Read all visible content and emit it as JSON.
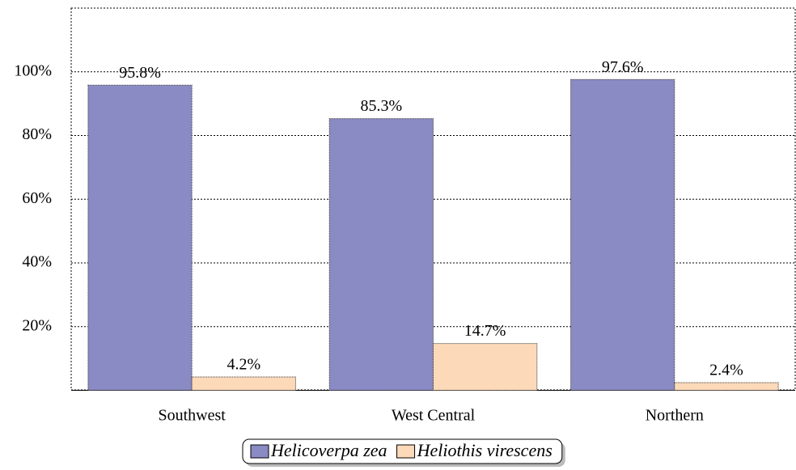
{
  "chart_data": {
    "type": "bar",
    "categories": [
      "Southwest",
      "West Central",
      "Northern"
    ],
    "series": [
      {
        "name": "Helicoverpa zea",
        "color": "#8a8ac4",
        "values": [
          95.8,
          85.3,
          97.6
        ],
        "value_labels": [
          "95.8%",
          "85.3%",
          "97.6%"
        ]
      },
      {
        "name": "Heliothis virescens",
        "color": "#fcd9b8",
        "values": [
          4.2,
          14.7,
          2.4
        ],
        "value_labels": [
          "4.2%",
          "14.7%",
          "2.4%"
        ]
      }
    ],
    "ylim": [
      0,
      120
    ],
    "yticks": [
      {
        "value": 20,
        "label": "20%"
      },
      {
        "value": 40,
        "label": "40%"
      },
      {
        "value": 60,
        "label": "60%"
      },
      {
        "value": 80,
        "label": "80%"
      },
      {
        "value": 100,
        "label": "100%"
      }
    ],
    "grid": true,
    "legend": "bottom"
  }
}
